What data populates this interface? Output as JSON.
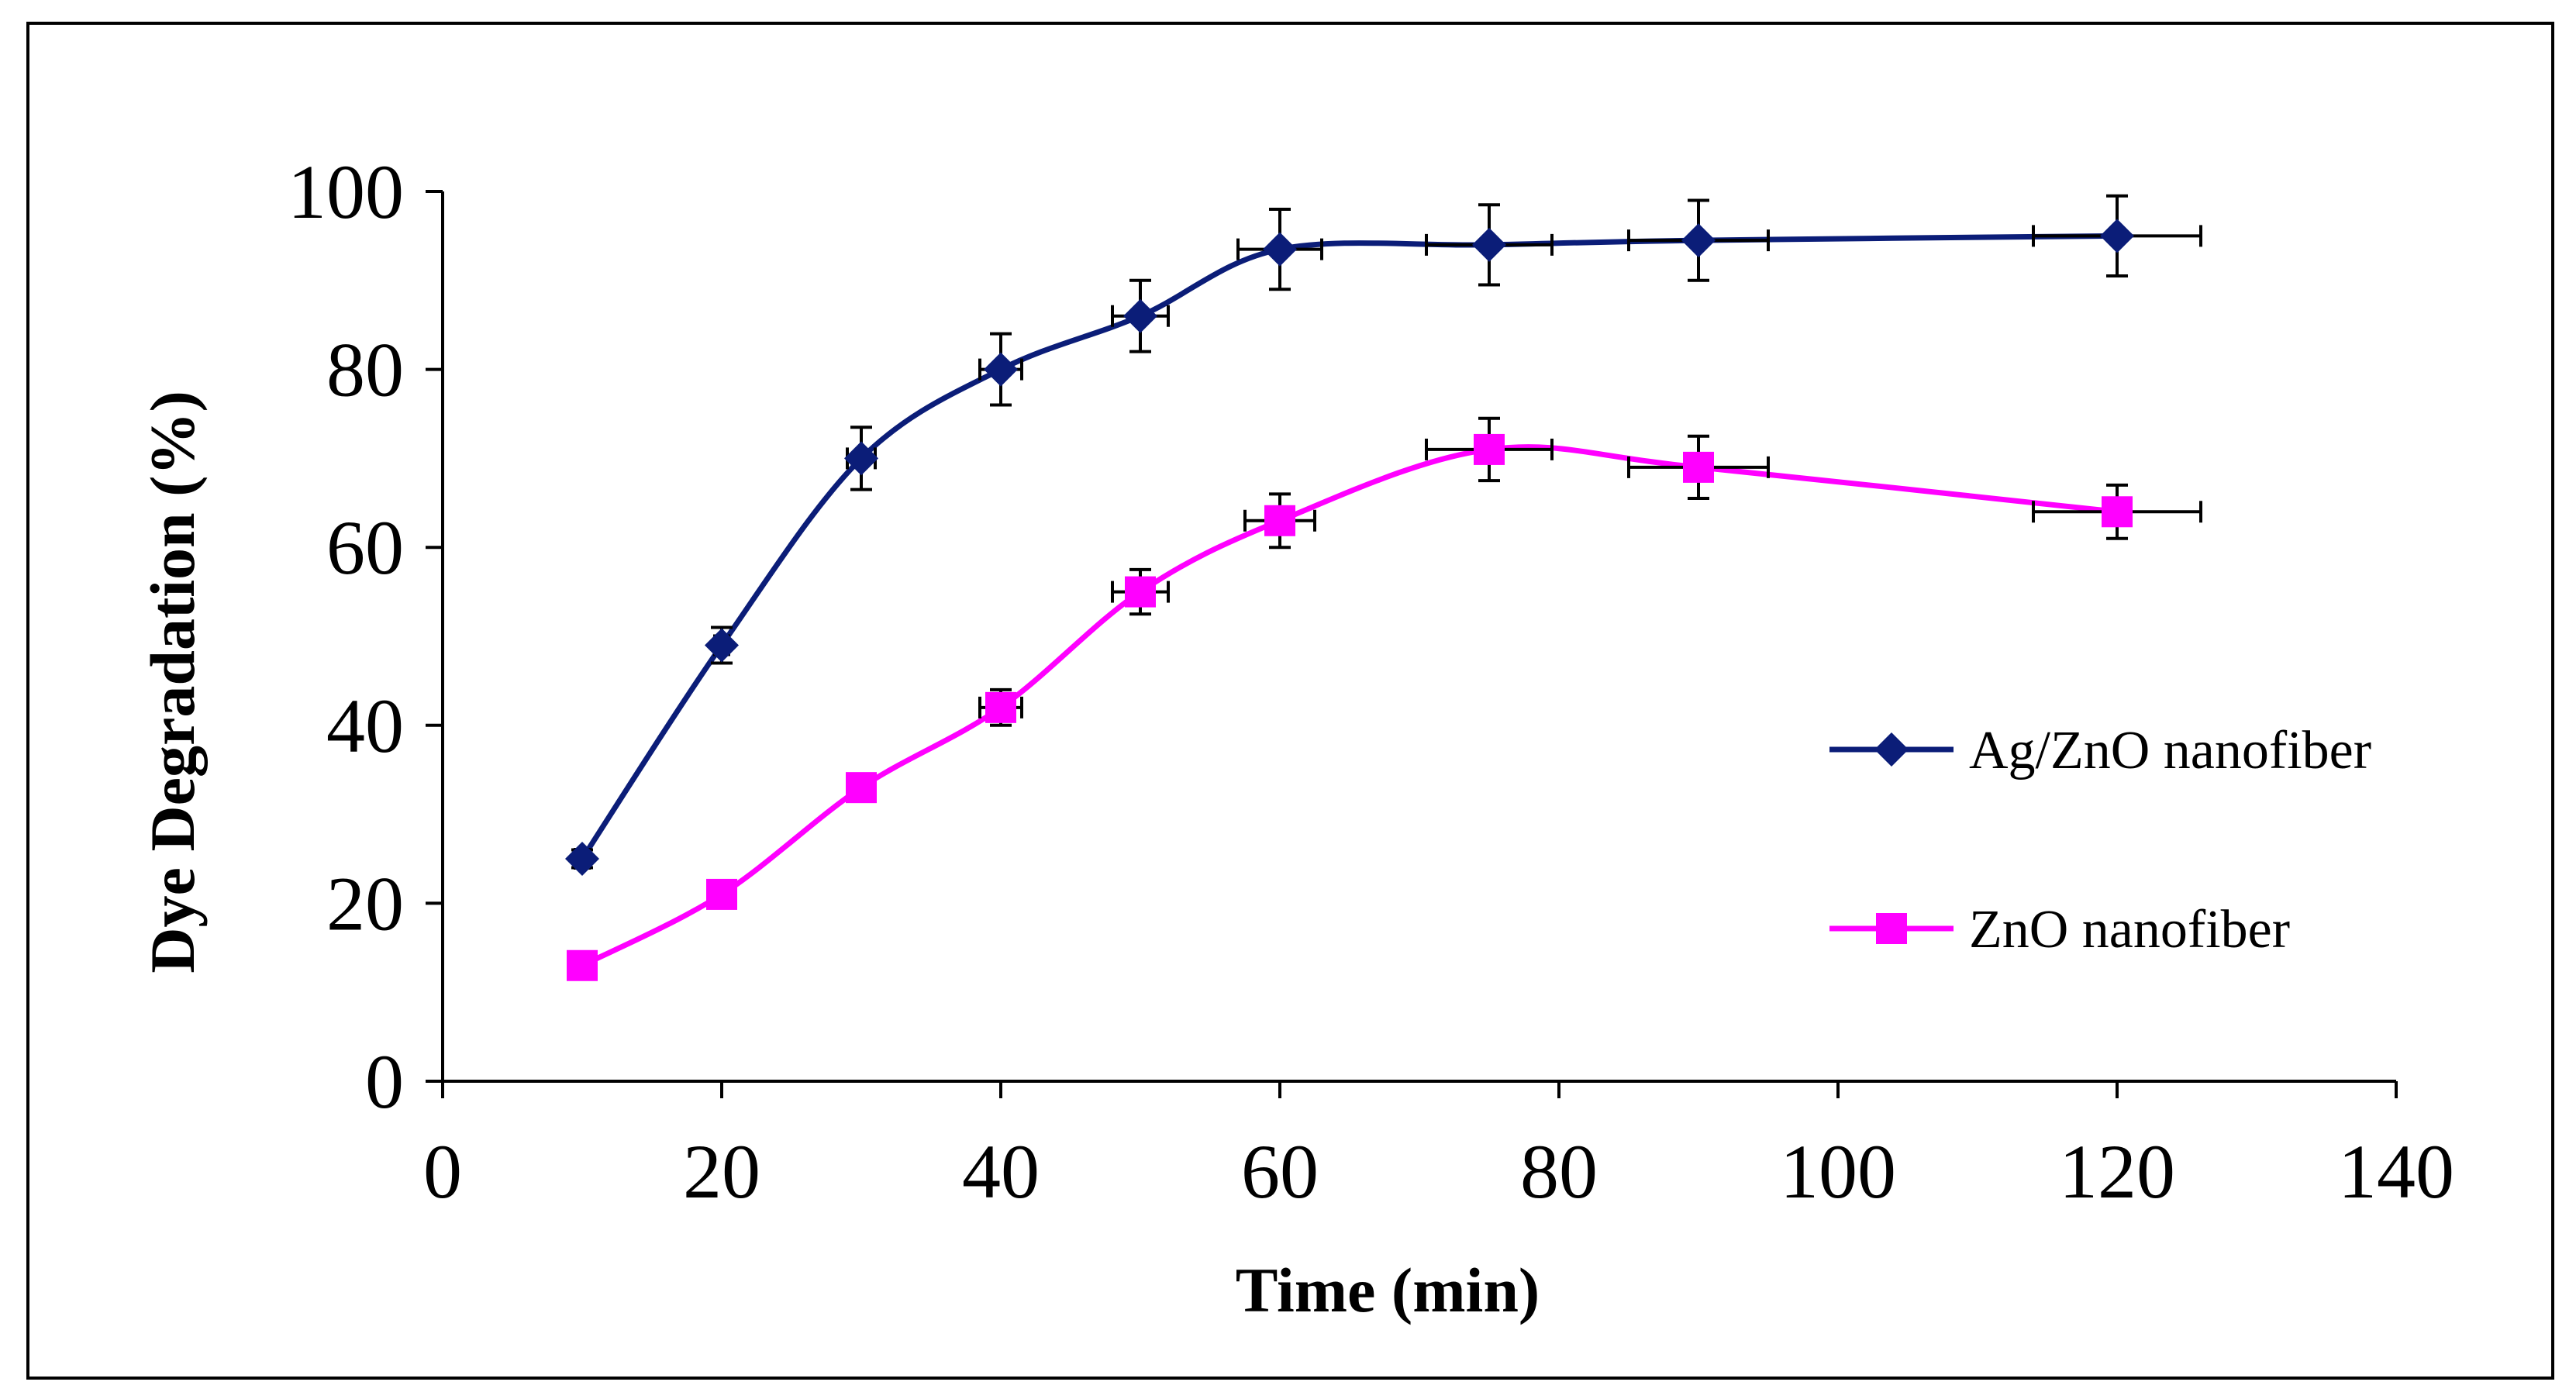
{
  "chart_data": {
    "type": "line",
    "title": "",
    "xlabel": "Time (min)",
    "ylabel": "Dye Degradation (%)",
    "xlim": [
      0,
      140
    ],
    "ylim": [
      0,
      100
    ],
    "xticks": [
      0,
      20,
      40,
      60,
      80,
      100,
      120,
      140
    ],
    "yticks": [
      0,
      20,
      40,
      60,
      80,
      100
    ],
    "grid": false,
    "legend_position": "right",
    "series": [
      {
        "name": "Ag/ZnO nanofiber",
        "color": "#0b1d78",
        "marker": "diamond",
        "x": [
          10,
          20,
          30,
          40,
          50,
          60,
          75,
          90,
          120
        ],
        "y": [
          25,
          49,
          70,
          80,
          86,
          93.5,
          94,
          94.5,
          95
        ],
        "x_err": [
          0.5,
          0.5,
          1,
          1.5,
          2,
          3,
          4.5,
          5,
          6
        ],
        "y_err": [
          1,
          2,
          3.5,
          4,
          4,
          4.5,
          4.5,
          4.5,
          4.5
        ]
      },
      {
        "name": "ZnO nanofiber",
        "color": "#ff00ff",
        "marker": "square",
        "x": [
          10,
          20,
          30,
          40,
          50,
          60,
          75,
          90,
          120
        ],
        "y": [
          13,
          21,
          33,
          42,
          55,
          63,
          71,
          69,
          64
        ],
        "x_err": [
          0.5,
          0.5,
          1,
          1.5,
          2,
          2.5,
          4.5,
          5,
          6
        ],
        "y_err": [
          1,
          1,
          1.5,
          2,
          2.5,
          3,
          3.5,
          3.5,
          3
        ]
      }
    ]
  }
}
